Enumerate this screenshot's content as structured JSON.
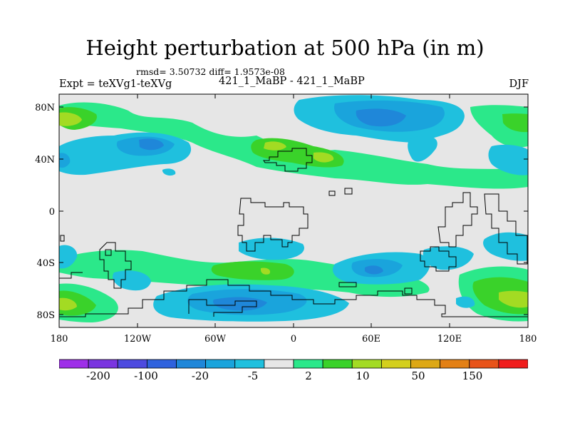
{
  "title": "Height perturbation at 500 hPa (in m)",
  "stats": "rmsd= 3.50732 diff= 1.9573e-08",
  "experiment": "Expt = teXVg1-teXVg",
  "runs": "421_1_MaBP - 421_1_MaBP",
  "season": "DJF",
  "map": {
    "projection": "cylindrical-equidistant",
    "lon_range": [
      -180,
      180
    ],
    "lat_range": [
      -90,
      90
    ],
    "lon_ticks": [
      "180",
      "120W",
      "60W",
      "0",
      "60E",
      "120E",
      "180"
    ],
    "lat_ticks": [
      "80N",
      "40N",
      "0",
      "40S",
      "80S"
    ],
    "background_color": "#e6e6e6",
    "coastline_color": "#000000"
  },
  "colorbar": {
    "colors": [
      "#9e2ee8",
      "#7a35e0",
      "#4d4adf",
      "#2f62dd",
      "#1f87d9",
      "#1aa4dc",
      "#1fc0de",
      "#e6e6e6",
      "#2be88a",
      "#3ad22a",
      "#a3db23",
      "#d4cf1d",
      "#dda815",
      "#e38015",
      "#e8531a",
      "#f01c1c"
    ],
    "labels": [
      "-200",
      "-100",
      "-20",
      "-5",
      "2",
      "10",
      "50",
      "150"
    ]
  }
}
